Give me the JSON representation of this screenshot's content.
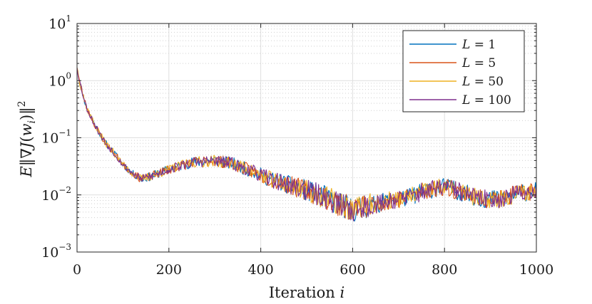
{
  "chart_data": {
    "type": "line",
    "title": "",
    "xlabel_text": "Iteration",
    "xlabel_var": "i",
    "ylabel": "E‖∇J(w_i)‖²",
    "ylabel_parts": {
      "e": "E",
      "open": "‖∇",
      "j": "J",
      "paren": "(",
      "w": "w",
      "sub": "i",
      "close": ")‖",
      "sup": "2"
    },
    "x_range": [
      0,
      1000
    ],
    "y_range": [
      0.001,
      10
    ],
    "y_scale": "log",
    "grid": true,
    "legend_position": "top-right",
    "x_ticks": [
      "0",
      "200",
      "400",
      "600",
      "800",
      "1000"
    ],
    "x_tick_values": [
      0,
      200,
      400,
      600,
      800,
      1000
    ],
    "y_ticks": [
      {
        "base": "10",
        "exp": "1",
        "value": 10
      },
      {
        "base": "10",
        "exp": "0",
        "value": 1
      },
      {
        "base": "10",
        "exp": "−1",
        "value": 0.1
      },
      {
        "base": "10",
        "exp": "−2",
        "value": 0.01
      },
      {
        "base": "10",
        "exp": "−3",
        "value": 0.001
      }
    ],
    "series": [
      {
        "name": "L = 1",
        "var": "L",
        "eq": " = 1",
        "color": "#0072BD",
        "seed": 11
      },
      {
        "name": "L = 5",
        "var": "L",
        "eq": " = 5",
        "color": "#D95319",
        "seed": 23
      },
      {
        "name": "L = 50",
        "var": "L",
        "eq": " = 50",
        "color": "#EDB120",
        "seed": 37
      },
      {
        "name": "L = 100",
        "var": "L",
        "eq": " = 100",
        "color": "#7E2F8E",
        "seed": 53
      }
    ],
    "trend": {
      "x": [
        0,
        5,
        20,
        40,
        60,
        80,
        100,
        120,
        140,
        160,
        200,
        250,
        300,
        340,
        380,
        420,
        460,
        500,
        540,
        570,
        600,
        640,
        680,
        720,
        760,
        800,
        840,
        880,
        920,
        960,
        1000
      ],
      "y": [
        1.8,
        1.0,
        0.35,
        0.16,
        0.085,
        0.055,
        0.034,
        0.024,
        0.019,
        0.021,
        0.028,
        0.037,
        0.04,
        0.035,
        0.026,
        0.019,
        0.015,
        0.012,
        0.009,
        0.007,
        0.0055,
        0.0065,
        0.008,
        0.009,
        0.012,
        0.014,
        0.011,
        0.0085,
        0.0085,
        0.0105,
        0.012
      ]
    }
  }
}
